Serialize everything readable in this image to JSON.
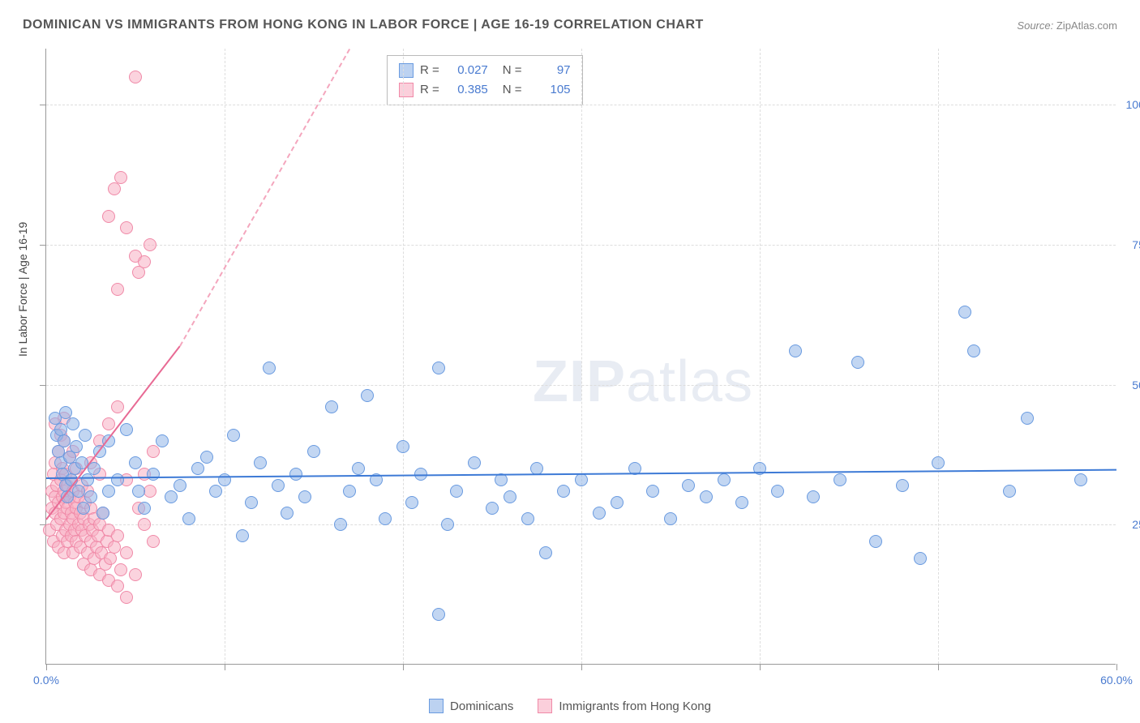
{
  "title": "DOMINICAN VS IMMIGRANTS FROM HONG KONG IN LABOR FORCE | AGE 16-19 CORRELATION CHART",
  "source": {
    "label": "Source:",
    "name": "ZipAtlas.com"
  },
  "axis_title_y": "In Labor Force | Age 16-19",
  "watermark": {
    "bold": "ZIP",
    "rest": "atlas"
  },
  "chart": {
    "type": "scatter",
    "xlim": [
      0,
      60
    ],
    "ylim": [
      0,
      110
    ],
    "background_color": "#ffffff",
    "grid_color": "#dddddd",
    "axis_color": "#999999",
    "tick_label_color": "#4a7bd0",
    "tick_fontsize": 14,
    "x_ticks": [
      0,
      10,
      20,
      30,
      40,
      50,
      60
    ],
    "x_tick_labels": [
      "0.0%",
      "",
      "",
      "",
      "",
      "",
      "60.0%"
    ],
    "y_ticks": [
      25,
      50,
      75,
      100
    ],
    "y_tick_labels": [
      "25.0%",
      "50.0%",
      "75.0%",
      "100.0%"
    ],
    "marker_size": 16,
    "marker_opacity": 0.55,
    "series": {
      "blue": {
        "label": "Dominicans",
        "fill": "#8fb4e8",
        "stroke": "#6a9be0",
        "R": "0.027",
        "N": "97",
        "trend": {
          "x1": 0,
          "y1": 33.5,
          "x2": 60,
          "y2": 35.0,
          "color": "#3d7ad6",
          "width": 2
        },
        "points": [
          [
            0.5,
            44
          ],
          [
            0.6,
            41
          ],
          [
            0.7,
            38
          ],
          [
            0.8,
            36
          ],
          [
            0.8,
            42
          ],
          [
            0.9,
            34
          ],
          [
            1.0,
            40
          ],
          [
            1.1,
            32
          ],
          [
            1.1,
            45
          ],
          [
            1.2,
            30
          ],
          [
            1.3,
            37
          ],
          [
            1.4,
            33
          ],
          [
            1.5,
            43
          ],
          [
            1.6,
            35
          ],
          [
            1.7,
            39
          ],
          [
            1.8,
            31
          ],
          [
            2.0,
            36
          ],
          [
            2.1,
            28
          ],
          [
            2.2,
            41
          ],
          [
            2.3,
            33
          ],
          [
            2.5,
            30
          ],
          [
            2.7,
            35
          ],
          [
            3.0,
            38
          ],
          [
            3.2,
            27
          ],
          [
            3.5,
            31
          ],
          [
            3.5,
            40
          ],
          [
            4.0,
            33
          ],
          [
            4.5,
            42
          ],
          [
            5.0,
            36
          ],
          [
            5.2,
            31
          ],
          [
            5.5,
            28
          ],
          [
            6.0,
            34
          ],
          [
            6.5,
            40
          ],
          [
            7.0,
            30
          ],
          [
            7.5,
            32
          ],
          [
            8.0,
            26
          ],
          [
            8.5,
            35
          ],
          [
            9.0,
            37
          ],
          [
            9.5,
            31
          ],
          [
            10.0,
            33
          ],
          [
            10.5,
            41
          ],
          [
            11.0,
            23
          ],
          [
            11.5,
            29
          ],
          [
            12.0,
            36
          ],
          [
            12.5,
            53
          ],
          [
            13.0,
            32
          ],
          [
            13.5,
            27
          ],
          [
            14.0,
            34
          ],
          [
            14.5,
            30
          ],
          [
            15.0,
            38
          ],
          [
            16.0,
            46
          ],
          [
            16.5,
            25
          ],
          [
            17.0,
            31
          ],
          [
            17.5,
            35
          ],
          [
            18.0,
            48
          ],
          [
            18.5,
            33
          ],
          [
            19.0,
            26
          ],
          [
            20.0,
            39
          ],
          [
            20.5,
            29
          ],
          [
            21.0,
            34
          ],
          [
            22.0,
            9
          ],
          [
            22.0,
            53
          ],
          [
            22.5,
            25
          ],
          [
            23.0,
            31
          ],
          [
            24.0,
            36
          ],
          [
            25.0,
            28
          ],
          [
            25.5,
            33
          ],
          [
            26.0,
            30
          ],
          [
            27.0,
            26
          ],
          [
            27.5,
            35
          ],
          [
            28.0,
            20
          ],
          [
            29.0,
            31
          ],
          [
            30.0,
            33
          ],
          [
            31.0,
            27
          ],
          [
            32.0,
            29
          ],
          [
            33.0,
            35
          ],
          [
            34.0,
            31
          ],
          [
            35.0,
            26
          ],
          [
            36.0,
            32
          ],
          [
            37.0,
            30
          ],
          [
            38.0,
            33
          ],
          [
            39.0,
            29
          ],
          [
            40.0,
            35
          ],
          [
            41.0,
            31
          ],
          [
            42.0,
            56
          ],
          [
            43.0,
            30
          ],
          [
            44.5,
            33
          ],
          [
            45.5,
            54
          ],
          [
            46.5,
            22
          ],
          [
            48.0,
            32
          ],
          [
            49.0,
            19
          ],
          [
            50.0,
            36
          ],
          [
            51.5,
            63
          ],
          [
            52.0,
            56
          ],
          [
            54.0,
            31
          ],
          [
            55.0,
            44
          ],
          [
            58.0,
            33
          ]
        ]
      },
      "pink": {
        "label": "Immigrants from Hong Kong",
        "fill": "#f8afc3",
        "stroke": "#f08aa8",
        "R": "0.385",
        "N": "105",
        "trend_solid": {
          "x1": 0,
          "y1": 26,
          "x2": 7.5,
          "y2": 57,
          "color": "#e86a94",
          "width": 2
        },
        "trend_dash": {
          "x1": 7.5,
          "y1": 57,
          "x2": 17,
          "y2": 110,
          "color": "#f4a6bd",
          "width": 2,
          "dash": true
        },
        "points": [
          [
            0.2,
            24
          ],
          [
            0.3,
            28
          ],
          [
            0.3,
            31
          ],
          [
            0.4,
            22
          ],
          [
            0.4,
            34
          ],
          [
            0.5,
            27
          ],
          [
            0.5,
            30
          ],
          [
            0.5,
            36
          ],
          [
            0.6,
            25
          ],
          [
            0.6,
            32
          ],
          [
            0.7,
            21
          ],
          [
            0.7,
            29
          ],
          [
            0.7,
            38
          ],
          [
            0.8,
            26
          ],
          [
            0.8,
            33
          ],
          [
            0.8,
            41
          ],
          [
            0.9,
            23
          ],
          [
            0.9,
            30
          ],
          [
            0.9,
            35
          ],
          [
            1.0,
            20
          ],
          [
            1.0,
            27
          ],
          [
            1.0,
            31
          ],
          [
            1.0,
            44
          ],
          [
            1.1,
            24
          ],
          [
            1.1,
            29
          ],
          [
            1.1,
            34
          ],
          [
            1.2,
            22
          ],
          [
            1.2,
            28
          ],
          [
            1.2,
            32
          ],
          [
            1.3,
            25
          ],
          [
            1.3,
            30
          ],
          [
            1.3,
            37
          ],
          [
            1.4,
            23
          ],
          [
            1.4,
            27
          ],
          [
            1.4,
            33
          ],
          [
            1.5,
            20
          ],
          [
            1.5,
            26
          ],
          [
            1.5,
            31
          ],
          [
            1.6,
            24
          ],
          [
            1.6,
            29
          ],
          [
            1.7,
            22
          ],
          [
            1.7,
            28
          ],
          [
            1.7,
            35
          ],
          [
            1.8,
            25
          ],
          [
            1.8,
            30
          ],
          [
            1.9,
            21
          ],
          [
            1.9,
            27
          ],
          [
            2.0,
            24
          ],
          [
            2.0,
            32
          ],
          [
            2.1,
            18
          ],
          [
            2.1,
            26
          ],
          [
            2.2,
            23
          ],
          [
            2.2,
            29
          ],
          [
            2.3,
            20
          ],
          [
            2.3,
            31
          ],
          [
            2.4,
            25
          ],
          [
            2.5,
            17
          ],
          [
            2.5,
            22
          ],
          [
            2.5,
            28
          ],
          [
            2.6,
            24
          ],
          [
            2.7,
            19
          ],
          [
            2.7,
            26
          ],
          [
            2.8,
            21
          ],
          [
            2.9,
            23
          ],
          [
            3.0,
            16
          ],
          [
            3.0,
            25
          ],
          [
            3.1,
            20
          ],
          [
            3.2,
            27
          ],
          [
            3.3,
            18
          ],
          [
            3.4,
            22
          ],
          [
            3.5,
            15
          ],
          [
            3.5,
            24
          ],
          [
            3.6,
            19
          ],
          [
            3.8,
            21
          ],
          [
            4.0,
            14
          ],
          [
            4.0,
            23
          ],
          [
            4.2,
            17
          ],
          [
            4.5,
            12
          ],
          [
            4.5,
            20
          ],
          [
            5.0,
            16
          ],
          [
            5.2,
            28
          ],
          [
            5.5,
            34
          ],
          [
            5.8,
            31
          ],
          [
            6.0,
            38
          ],
          [
            3.5,
            80
          ],
          [
            3.8,
            85
          ],
          [
            4.2,
            87
          ],
          [
            4.5,
            78
          ],
          [
            5.0,
            73
          ],
          [
            5.2,
            70
          ],
          [
            5.5,
            72
          ],
          [
            5.8,
            75
          ],
          [
            4.0,
            67
          ],
          [
            5.0,
            105
          ],
          [
            3.0,
            40
          ],
          [
            3.5,
            43
          ],
          [
            4.0,
            46
          ],
          [
            0.5,
            43
          ],
          [
            1.0,
            40
          ],
          [
            1.5,
            38
          ],
          [
            2.5,
            36
          ],
          [
            3.0,
            34
          ],
          [
            4.5,
            33
          ],
          [
            5.5,
            25
          ],
          [
            6.0,
            22
          ]
        ]
      }
    }
  },
  "stats_box": {
    "rows": [
      {
        "swatch": "blue",
        "R_label": "R =",
        "R": "0.027",
        "N_label": "N =",
        "N": "97"
      },
      {
        "swatch": "pink",
        "R_label": "R =",
        "R": "0.385",
        "N_label": "N =",
        "N": "105"
      }
    ]
  },
  "bottom_legend": [
    {
      "swatch": "blue",
      "label": "Dominicans"
    },
    {
      "swatch": "pink",
      "label": "Immigrants from Hong Kong"
    }
  ]
}
